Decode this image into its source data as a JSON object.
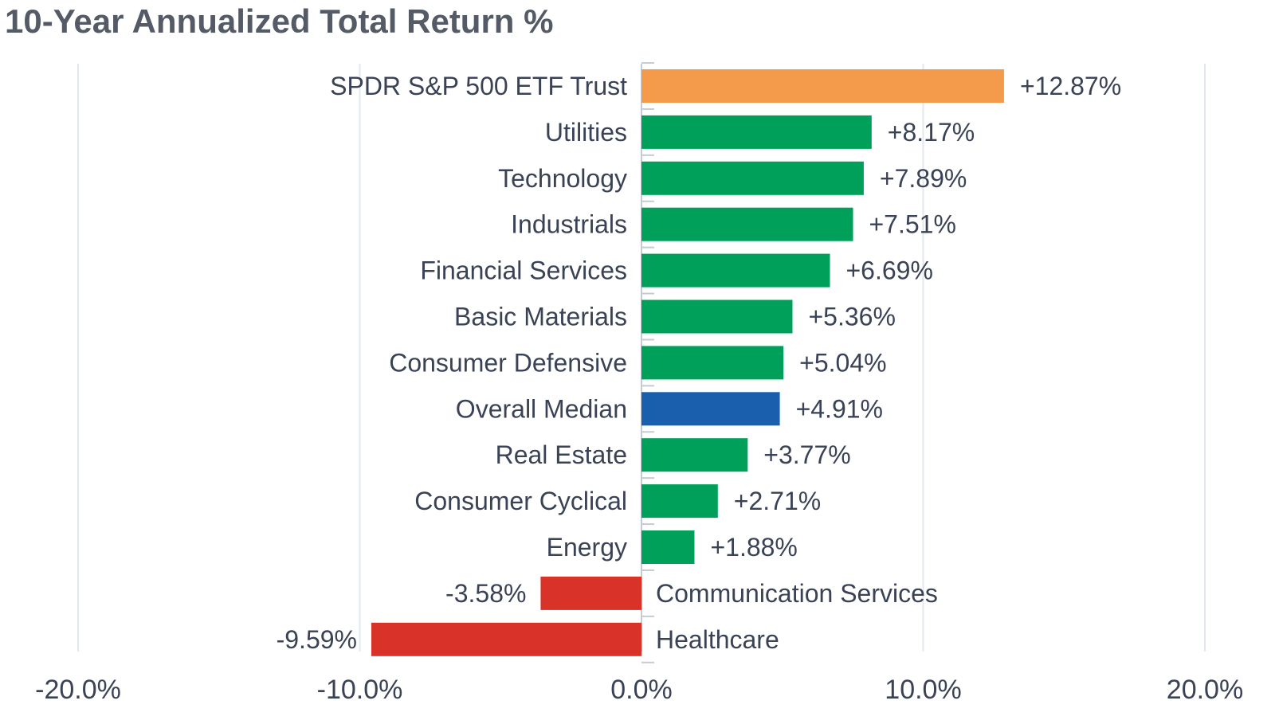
{
  "chart_data": {
    "type": "bar",
    "orientation": "horizontal",
    "title": "10-Year Annualized Total Return %",
    "xlabel": "",
    "ylabel": "",
    "xlim": [
      -20,
      20
    ],
    "xticks": [
      -20,
      -10,
      0,
      10,
      20
    ],
    "xtick_labels": [
      "-20.0%",
      "-10.0%",
      "0.0%",
      "10.0%",
      "20.0%"
    ],
    "grid": true,
    "legend": "none",
    "categories": [
      "SPDR S&P 500 ETF Trust",
      "Utilities",
      "Technology",
      "Industrials",
      "Financial Services",
      "Basic Materials",
      "Consumer Defensive",
      "Overall Median",
      "Real Estate",
      "Consumer Cyclical",
      "Energy",
      "Communication Services",
      "Healthcare"
    ],
    "values": [
      12.87,
      8.17,
      7.89,
      7.51,
      6.69,
      5.36,
      5.04,
      4.91,
      3.77,
      2.71,
      1.88,
      -3.58,
      -9.59
    ],
    "value_labels": [
      "+12.87%",
      "+8.17%",
      "+7.89%",
      "+7.51%",
      "+6.69%",
      "+5.36%",
      "+5.04%",
      "+4.91%",
      "+3.77%",
      "+2.71%",
      "+1.88%",
      "-3.58%",
      "-9.59%"
    ],
    "colors": [
      "#f39b4b",
      "#00a05a",
      "#00a05a",
      "#00a05a",
      "#00a05a",
      "#00a05a",
      "#00a05a",
      "#1a5fae",
      "#00a05a",
      "#00a05a",
      "#00a05a",
      "#d93329",
      "#d93329"
    ]
  }
}
